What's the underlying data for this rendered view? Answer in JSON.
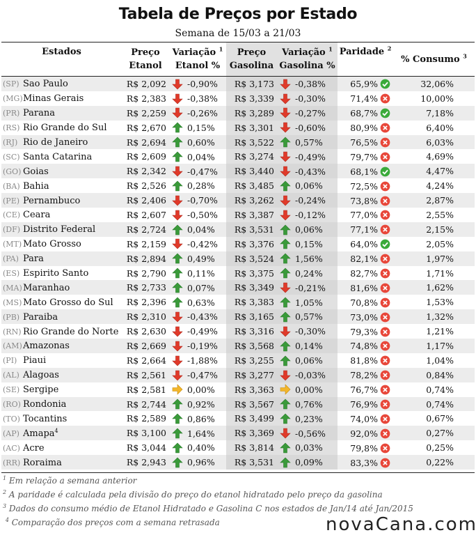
{
  "title": "Tabela de Preços por Estado",
  "subtitle": "Semana de 15/03 a 21/03",
  "headers": {
    "estados": "Estados",
    "preco_etanol_1": "Preço",
    "preco_etanol_2": "Etanol",
    "var_etanol_1": "Variação",
    "var_etanol_sup": "1",
    "var_etanol_2": "Etanol %",
    "preco_gas_1": "Preço",
    "preco_gas_2": "Gasolina",
    "var_gas_1": "Variação",
    "var_gas_sup": "1",
    "var_gas_2": "Gasolina %",
    "paridade": "Paridade",
    "paridade_sup": "2",
    "consumo": "% Consumo",
    "consumo_sup": "3"
  },
  "icon_colors": {
    "up": "#3a9a3a",
    "down": "#e03a2a",
    "flat": "#f2b62b",
    "ok": "#3aaa3a",
    "bad": "#e8473a"
  },
  "rows": [
    {
      "abbr": "(SP)",
      "state": "Sao Paulo",
      "state_sup": "",
      "pe": "R$ 2,092",
      "ve_dir": "down",
      "ve": "-0,90%",
      "pg": "R$ 3,173",
      "vg_dir": "down",
      "vg": "-0,38%",
      "par": "65,9%",
      "par_ok": true,
      "cons": "32,06%"
    },
    {
      "abbr": "(MG)",
      "state": "Minas Gerais",
      "state_sup": "",
      "pe": "R$ 2,383",
      "ve_dir": "down",
      "ve": "-0,38%",
      "pg": "R$ 3,339",
      "vg_dir": "down",
      "vg": "-0,30%",
      "par": "71,4%",
      "par_ok": false,
      "cons": "10,00%"
    },
    {
      "abbr": "(PR)",
      "state": "Parana",
      "state_sup": "",
      "pe": "R$ 2,259",
      "ve_dir": "down",
      "ve": "-0,26%",
      "pg": "R$ 3,289",
      "vg_dir": "down",
      "vg": "-0,27%",
      "par": "68,7%",
      "par_ok": true,
      "cons": "7,18%"
    },
    {
      "abbr": "(RS)",
      "state": "Rio Grande do Sul",
      "state_sup": "",
      "pe": "R$ 2,670",
      "ve_dir": "up",
      "ve": "0,15%",
      "pg": "R$ 3,301",
      "vg_dir": "down",
      "vg": "-0,60%",
      "par": "80,9%",
      "par_ok": false,
      "cons": "6,40%"
    },
    {
      "abbr": "(RJ)",
      "state": "Rio de Janeiro",
      "state_sup": "",
      "pe": "R$ 2,694",
      "ve_dir": "up",
      "ve": "0,60%",
      "pg": "R$ 3,522",
      "vg_dir": "up",
      "vg": "0,57%",
      "par": "76,5%",
      "par_ok": false,
      "cons": "6,03%"
    },
    {
      "abbr": "(SC)",
      "state": "Santa Catarina",
      "state_sup": "",
      "pe": "R$ 2,609",
      "ve_dir": "up",
      "ve": "0,04%",
      "pg": "R$ 3,274",
      "vg_dir": "down",
      "vg": "-0,49%",
      "par": "79,7%",
      "par_ok": false,
      "cons": "4,69%"
    },
    {
      "abbr": "(GO)",
      "state": "Goias",
      "state_sup": "",
      "pe": "R$ 2,342",
      "ve_dir": "down",
      "ve": "-0,47%",
      "pg": "R$ 3,440",
      "vg_dir": "down",
      "vg": "-0,43%",
      "par": "68,1%",
      "par_ok": true,
      "cons": "4,47%"
    },
    {
      "abbr": "(BA)",
      "state": "Bahia",
      "state_sup": "",
      "pe": "R$ 2,526",
      "ve_dir": "up",
      "ve": "0,28%",
      "pg": "R$ 3,485",
      "vg_dir": "up",
      "vg": "0,06%",
      "par": "72,5%",
      "par_ok": false,
      "cons": "4,24%"
    },
    {
      "abbr": "(PE)",
      "state": "Pernambuco",
      "state_sup": "",
      "pe": "R$ 2,406",
      "ve_dir": "down",
      "ve": "-0,70%",
      "pg": "R$ 3,262",
      "vg_dir": "down",
      "vg": "-0,24%",
      "par": "73,8%",
      "par_ok": false,
      "cons": "2,87%"
    },
    {
      "abbr": "(CE)",
      "state": "Ceara",
      "state_sup": "",
      "pe": "R$ 2,607",
      "ve_dir": "down",
      "ve": "-0,50%",
      "pg": "R$ 3,387",
      "vg_dir": "down",
      "vg": "-0,12%",
      "par": "77,0%",
      "par_ok": false,
      "cons": "2,55%"
    },
    {
      "abbr": "(DF)",
      "state": "Distrito Federal",
      "state_sup": "",
      "pe": "R$ 2,724",
      "ve_dir": "up",
      "ve": "0,04%",
      "pg": "R$ 3,531",
      "vg_dir": "up",
      "vg": "0,06%",
      "par": "77,1%",
      "par_ok": false,
      "cons": "2,15%"
    },
    {
      "abbr": "(MT)",
      "state": "Mato Grosso",
      "state_sup": "",
      "pe": "R$ 2,159",
      "ve_dir": "down",
      "ve": "-0,42%",
      "pg": "R$ 3,376",
      "vg_dir": "up",
      "vg": "0,15%",
      "par": "64,0%",
      "par_ok": true,
      "cons": "2,05%"
    },
    {
      "abbr": "(PA)",
      "state": "Para",
      "state_sup": "",
      "pe": "R$ 2,894",
      "ve_dir": "up",
      "ve": "0,49%",
      "pg": "R$ 3,524",
      "vg_dir": "up",
      "vg": "1,56%",
      "par": "82,1%",
      "par_ok": false,
      "cons": "1,97%"
    },
    {
      "abbr": "(ES)",
      "state": "Espirito Santo",
      "state_sup": "",
      "pe": "R$ 2,790",
      "ve_dir": "up",
      "ve": "0,11%",
      "pg": "R$ 3,375",
      "vg_dir": "up",
      "vg": "0,24%",
      "par": "82,7%",
      "par_ok": false,
      "cons": "1,71%"
    },
    {
      "abbr": "(MA)",
      "state": "Maranhao",
      "state_sup": "",
      "pe": "R$ 2,733",
      "ve_dir": "up",
      "ve": "0,07%",
      "pg": "R$ 3,349",
      "vg_dir": "down",
      "vg": "-0,21%",
      "par": "81,6%",
      "par_ok": false,
      "cons": "1,62%"
    },
    {
      "abbr": "(MS)",
      "state": "Mato Grosso do Sul",
      "state_sup": "",
      "pe": "R$ 2,396",
      "ve_dir": "up",
      "ve": "0,63%",
      "pg": "R$ 3,383",
      "vg_dir": "up",
      "vg": "1,05%",
      "par": "70,8%",
      "par_ok": false,
      "cons": "1,53%"
    },
    {
      "abbr": "(PB)",
      "state": "Paraiba",
      "state_sup": "",
      "pe": "R$ 2,310",
      "ve_dir": "down",
      "ve": "-0,43%",
      "pg": "R$ 3,165",
      "vg_dir": "up",
      "vg": "0,57%",
      "par": "73,0%",
      "par_ok": false,
      "cons": "1,32%"
    },
    {
      "abbr": "(RN)",
      "state": "Rio Grande do Norte",
      "state_sup": "",
      "pe": "R$ 2,630",
      "ve_dir": "down",
      "ve": "-0,49%",
      "pg": "R$ 3,316",
      "vg_dir": "down",
      "vg": "-0,30%",
      "par": "79,3%",
      "par_ok": false,
      "cons": "1,21%"
    },
    {
      "abbr": "(AM)",
      "state": "Amazonas",
      "state_sup": "",
      "pe": "R$ 2,669",
      "ve_dir": "down",
      "ve": "-0,19%",
      "pg": "R$ 3,568",
      "vg_dir": "up",
      "vg": "0,14%",
      "par": "74,8%",
      "par_ok": false,
      "cons": "1,17%"
    },
    {
      "abbr": "(PI)",
      "state": "Piaui",
      "state_sup": "",
      "pe": "R$ 2,664",
      "ve_dir": "down",
      "ve": "-1,88%",
      "pg": "R$ 3,255",
      "vg_dir": "up",
      "vg": "0,06%",
      "par": "81,8%",
      "par_ok": false,
      "cons": "1,04%"
    },
    {
      "abbr": "(AL)",
      "state": "Alagoas",
      "state_sup": "",
      "pe": "R$ 2,561",
      "ve_dir": "down",
      "ve": "-0,47%",
      "pg": "R$ 3,277",
      "vg_dir": "down",
      "vg": "-0,03%",
      "par": "78,2%",
      "par_ok": false,
      "cons": "0,84%"
    },
    {
      "abbr": "(SE)",
      "state": "Sergipe",
      "state_sup": "",
      "pe": "R$ 2,581",
      "ve_dir": "flat",
      "ve": "0,00%",
      "pg": "R$ 3,363",
      "vg_dir": "flat",
      "vg": "0,00%",
      "par": "76,7%",
      "par_ok": false,
      "cons": "0,74%"
    },
    {
      "abbr": "(RO)",
      "state": "Rondonia",
      "state_sup": "",
      "pe": "R$ 2,744",
      "ve_dir": "up",
      "ve": "0,92%",
      "pg": "R$ 3,567",
      "vg_dir": "up",
      "vg": "0,76%",
      "par": "76,9%",
      "par_ok": false,
      "cons": "0,74%"
    },
    {
      "abbr": "(TO)",
      "state": "Tocantins",
      "state_sup": "",
      "pe": "R$ 2,589",
      "ve_dir": "up",
      "ve": "0,86%",
      "pg": "R$ 3,499",
      "vg_dir": "up",
      "vg": "0,23%",
      "par": "74,0%",
      "par_ok": false,
      "cons": "0,67%"
    },
    {
      "abbr": "(AP)",
      "state": "Amapa",
      "state_sup": "4",
      "pe": "R$ 3,100",
      "ve_dir": "up",
      "ve": "1,64%",
      "pg": "R$ 3,369",
      "vg_dir": "down",
      "vg": "-0,56%",
      "par": "92,0%",
      "par_ok": false,
      "cons": "0,27%"
    },
    {
      "abbr": "(AC)",
      "state": "Acre",
      "state_sup": "",
      "pe": "R$ 3,044",
      "ve_dir": "up",
      "ve": "0,40%",
      "pg": "R$ 3,814",
      "vg_dir": "up",
      "vg": "0,03%",
      "par": "79,8%",
      "par_ok": false,
      "cons": "0,25%"
    },
    {
      "abbr": "(RR)",
      "state": "Roraima",
      "state_sup": "",
      "pe": "R$ 2,943",
      "ve_dir": "up",
      "ve": "0,96%",
      "pg": "R$ 3,531",
      "vg_dir": "up",
      "vg": "0,09%",
      "par": "83,3%",
      "par_ok": false,
      "cons": "0,22%"
    }
  ],
  "footnotes": [
    {
      "num": "1",
      "text": "Em relação a semana anterior"
    },
    {
      "num": "2",
      "text": "A paridade é calculada pela divisão do preço do etanol hidratado pelo preço da gasolina"
    },
    {
      "num": "3",
      "text": "Dados do consumo médio de Etanol Hidratado e Gasolina C nos estados de Jan/14 até Jan/2015"
    },
    {
      "num": "4",
      "text": "Comparação dos preços com a semana retrasada"
    }
  ],
  "logo": "novaCana.com"
}
